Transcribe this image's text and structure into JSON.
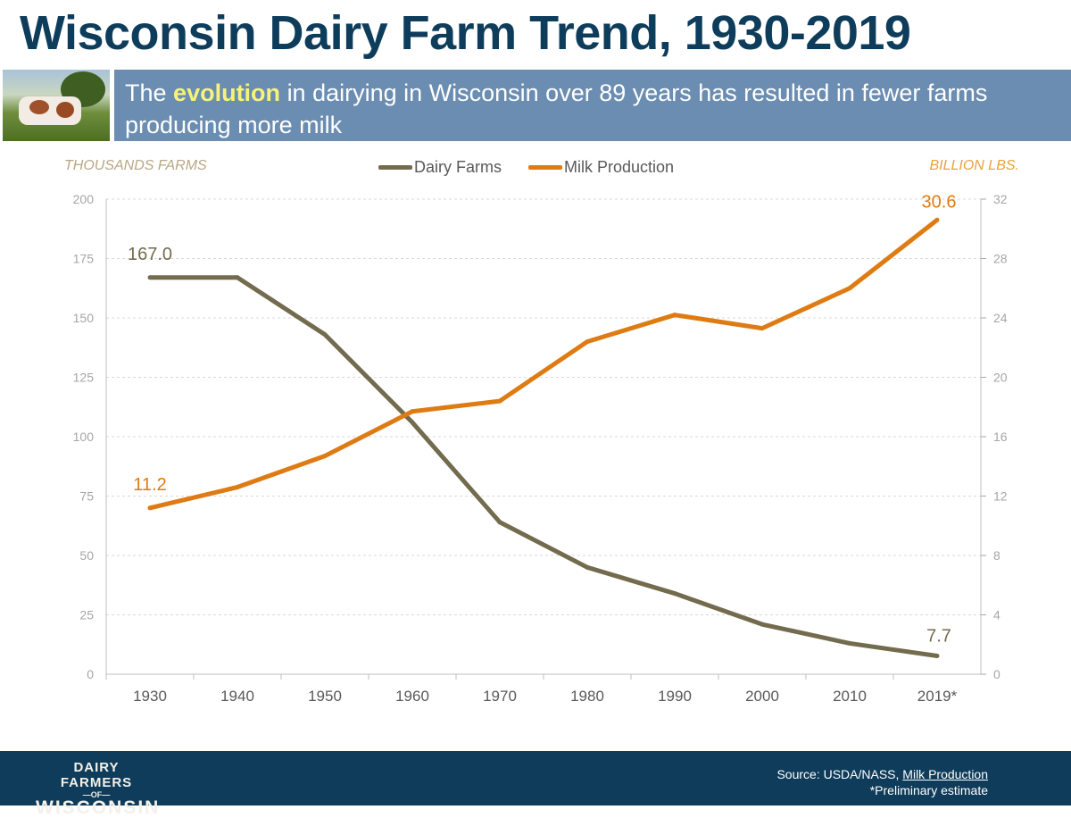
{
  "title": "Wisconsin Dairy Farm Trend, 1930-2019",
  "banner": {
    "pre": "The",
    "highlight": "evolution",
    "post": "in dairying in Wisconsin over 89 years has resulted in fewer farms producing more milk"
  },
  "footer": {
    "logo_text": "DAIRY FARMERS OF WISCONSIN",
    "source_prefix": "Source: USDA/NASS,",
    "source_link": "Milk Production",
    "note": "*Preliminary estimate"
  },
  "chart_data": {
    "type": "line",
    "categories": [
      "1930",
      "1940",
      "1950",
      "1960",
      "1970",
      "1980",
      "1990",
      "2000",
      "2010",
      "2019*"
    ],
    "left_axis": {
      "label": "THOUSANDS FARMS",
      "ylim": [
        0,
        200
      ],
      "ticks": [
        "0",
        "25",
        "50",
        "75",
        "100",
        "125",
        "150",
        "175",
        "200"
      ]
    },
    "right_axis": {
      "label": "BILLION LBS.",
      "ylim": [
        0,
        32
      ],
      "ticks": [
        "0",
        "4",
        "8",
        "12",
        "16",
        "20",
        "24",
        "28",
        "32"
      ]
    },
    "grid": true,
    "legend": "top-center",
    "series": [
      {
        "name": "Dairy Farms",
        "axis": "left",
        "color": "#736b4e",
        "values": [
          167.0,
          167.0,
          143,
          106,
          64,
          45,
          34,
          21,
          13,
          7.7
        ],
        "labels": {
          "first": "167.0",
          "last": "7.7"
        }
      },
      {
        "name": "Milk Production",
        "axis": "right",
        "color": "#de7b12",
        "values": [
          11.2,
          12.6,
          14.7,
          17.7,
          18.4,
          22.4,
          24.2,
          23.3,
          26.0,
          30.6
        ],
        "labels": {
          "first": "11.2",
          "last": "30.6"
        }
      }
    ]
  }
}
